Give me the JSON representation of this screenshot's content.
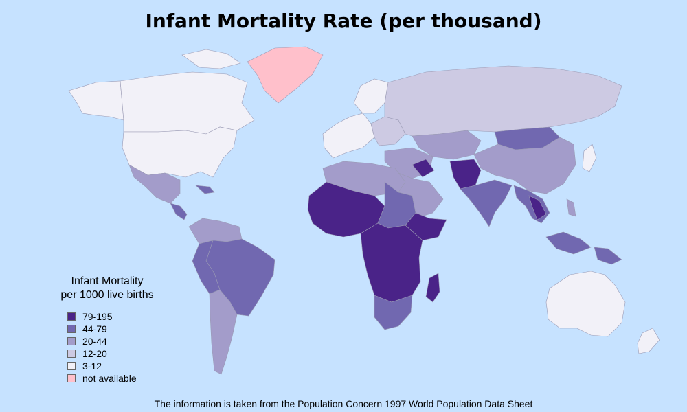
{
  "title": "Infant Mortality Rate (per thousand)",
  "legend": {
    "title": "Infant Mortality\nper 1000 live births",
    "items": [
      {
        "label": "79-195",
        "color": "#4a2388"
      },
      {
        "label": "44-79",
        "color": "#7168b0"
      },
      {
        "label": "20-44",
        "color": "#a39cca"
      },
      {
        "label": "12-20",
        "color": "#cdcae3"
      },
      {
        "label": "3-12",
        "color": "#f2f1f8"
      },
      {
        "label": "not available",
        "color": "#ffc0cb"
      }
    ]
  },
  "source_note": "The information is taken from the Population Concern 1997 World Population Data Sheet",
  "colors": {
    "ocean": "#c6e2ff",
    "border": "#9a9ab4"
  }
}
